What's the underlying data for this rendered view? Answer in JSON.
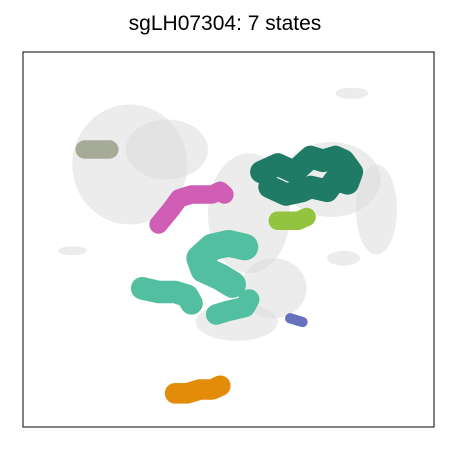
{
  "chart_data": {
    "type": "scatter",
    "title": "sgLH07304: 7 states",
    "xlabel": "",
    "ylabel": "",
    "grid": false,
    "legend": "none",
    "axis_ticks": "none",
    "background_color": "#dcdcdc",
    "background_clusters": [
      {
        "x": 0.26,
        "y": 0.7,
        "rx": 0.14,
        "ry": 0.16
      },
      {
        "x": 0.35,
        "y": 0.74,
        "rx": 0.1,
        "ry": 0.08
      },
      {
        "x": 0.55,
        "y": 0.57,
        "rx": 0.1,
        "ry": 0.16
      },
      {
        "x": 0.75,
        "y": 0.66,
        "rx": 0.12,
        "ry": 0.1
      },
      {
        "x": 0.86,
        "y": 0.58,
        "rx": 0.05,
        "ry": 0.12
      },
      {
        "x": 0.8,
        "y": 0.89,
        "rx": 0.04,
        "ry": 0.015
      },
      {
        "x": 0.12,
        "y": 0.47,
        "rx": 0.035,
        "ry": 0.012
      },
      {
        "x": 0.61,
        "y": 0.37,
        "rx": 0.08,
        "ry": 0.08
      },
      {
        "x": 0.78,
        "y": 0.45,
        "rx": 0.04,
        "ry": 0.02
      },
      {
        "x": 0.52,
        "y": 0.28,
        "rx": 0.1,
        "ry": 0.05
      }
    ],
    "states": [
      {
        "color": "#1f7a66",
        "polyline": [
          [
            0.58,
            0.68
          ],
          [
            0.62,
            0.7
          ],
          [
            0.66,
            0.68
          ],
          [
            0.7,
            0.72
          ],
          [
            0.73,
            0.71
          ],
          [
            0.76,
            0.72
          ],
          [
            0.78,
            0.71
          ],
          [
            0.8,
            0.68
          ],
          [
            0.79,
            0.65
          ],
          [
            0.76,
            0.66
          ],
          [
            0.74,
            0.63
          ],
          [
            0.7,
            0.64
          ],
          [
            0.68,
            0.63
          ],
          [
            0.64,
            0.62
          ],
          [
            0.6,
            0.64
          ]
        ],
        "width": 0.055
      },
      {
        "color": "#a5ab96",
        "polyline": [
          [
            0.15,
            0.74
          ],
          [
            0.21,
            0.74
          ]
        ],
        "width": 0.045
      },
      {
        "color": "#d05eb5",
        "polyline": [
          [
            0.33,
            0.54
          ],
          [
            0.36,
            0.58
          ],
          [
            0.38,
            0.61
          ],
          [
            0.41,
            0.62
          ],
          [
            0.44,
            0.62
          ],
          [
            0.46,
            0.62
          ],
          [
            0.48,
            0.63
          ],
          [
            0.49,
            0.62
          ]
        ],
        "width": 0.045
      },
      {
        "color": "#92c43f",
        "polyline": [
          [
            0.62,
            0.55
          ],
          [
            0.67,
            0.55
          ],
          [
            0.69,
            0.56
          ]
        ],
        "width": 0.045
      },
      {
        "color": "#52bfa0",
        "polyline": [
          [
            0.54,
            0.48
          ],
          [
            0.5,
            0.49
          ],
          [
            0.46,
            0.48
          ],
          [
            0.43,
            0.45
          ],
          [
            0.44,
            0.42
          ],
          [
            0.48,
            0.4
          ],
          [
            0.51,
            0.38
          ]
        ],
        "width": 0.065
      },
      {
        "color": "#52bfa0",
        "polyline": [
          [
            0.29,
            0.37
          ],
          [
            0.33,
            0.36
          ],
          [
            0.37,
            0.36
          ],
          [
            0.4,
            0.35
          ],
          [
            0.41,
            0.33
          ]
        ],
        "width": 0.055
      },
      {
        "color": "#52bfa0",
        "polyline": [
          [
            0.47,
            0.3
          ],
          [
            0.5,
            0.31
          ],
          [
            0.54,
            0.32
          ],
          [
            0.55,
            0.34
          ]
        ],
        "width": 0.05
      },
      {
        "color": "#6672bd",
        "polyline": [
          [
            0.65,
            0.29
          ],
          [
            0.68,
            0.28
          ]
        ],
        "width": 0.025
      },
      {
        "color": "#e38c0a",
        "polyline": [
          [
            0.37,
            0.09
          ],
          [
            0.4,
            0.09
          ],
          [
            0.43,
            0.1
          ],
          [
            0.46,
            0.1
          ],
          [
            0.48,
            0.11
          ]
        ],
        "width": 0.05
      }
    ]
  }
}
